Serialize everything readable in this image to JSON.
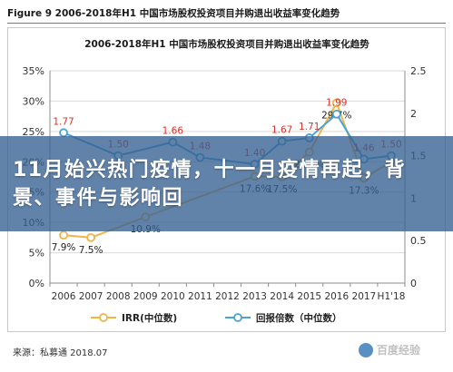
{
  "figure": {
    "title": "Figure 9 2006-2018年H1 中国市场股权投资项目并购退出收益率变化趋势",
    "source": "来源：私募通 2018.07",
    "watermark": "百度经验"
  },
  "banner": {
    "text": "11月始兴热门疫情，十一月疫情再起，背景、事件与影响回"
  },
  "colors": {
    "irr": "#f2b544",
    "multiple": "#4aa3d6",
    "label_red": "#e0302b",
    "banner_bg": "#366091"
  },
  "chart_data": {
    "type": "line",
    "title": "2006-2018年H1 中国市场股权投资项目并购退出收益率变化趋势",
    "categories": [
      "2006",
      "2007",
      "2008",
      "2009",
      "2010",
      "2011",
      "2012",
      "2013",
      "2014",
      "2015",
      "2016",
      "2017",
      "H1'18"
    ],
    "ylim_left": [
      0,
      35
    ],
    "left_ticks": [
      "0%",
      "5%",
      "10%",
      "15%",
      "20%",
      "25%",
      "30%",
      "35%"
    ],
    "ylim_right": [
      0,
      2.5
    ],
    "right_ticks": [
      "0",
      "0.5",
      "1",
      "1.5",
      "2",
      "2.5"
    ],
    "grid": true,
    "legend_position": "bottom",
    "series": [
      {
        "name": "IRR(中位数)",
        "axis": "left",
        "values": [
          7.9,
          7.5,
          null,
          10.9,
          null,
          null,
          null,
          17.6,
          17.5,
          21.6,
          29.7,
          17.3,
          20.0
        ],
        "labels": [
          "7.9%",
          "7.5%",
          "",
          "10.9%",
          "",
          "",
          "",
          "17.6%",
          "17.5%",
          "21.6%",
          "29.7%",
          "17.3%",
          ""
        ]
      },
      {
        "name": "回报倍数（中位数）",
        "axis": "right",
        "values": [
          1.77,
          null,
          1.5,
          null,
          1.66,
          1.48,
          null,
          1.4,
          1.67,
          1.71,
          1.99,
          1.46,
          1.5
        ],
        "labels": [
          "1.77",
          "",
          "1.50",
          "",
          "1.66",
          "1.48",
          "",
          "1.40",
          "1.67",
          "1.71",
          "1.99",
          "1.46",
          "1.50"
        ]
      }
    ]
  }
}
